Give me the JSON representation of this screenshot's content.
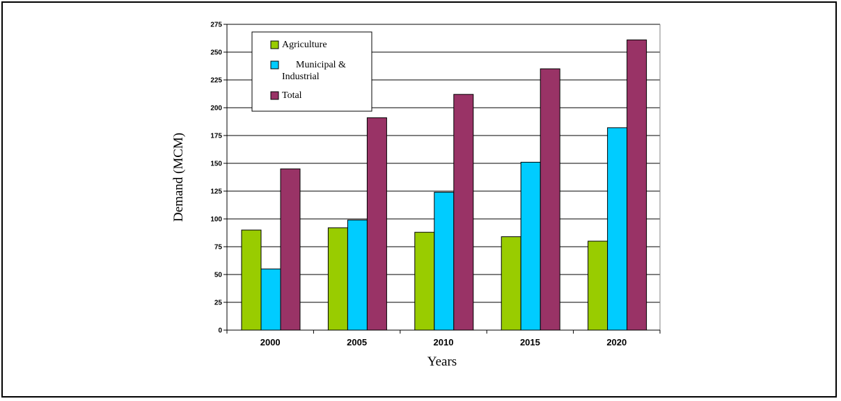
{
  "chart_data": {
    "type": "bar",
    "categories": [
      "2000",
      "2005",
      "2010",
      "2015",
      "2020"
    ],
    "series": [
      {
        "name": "Agriculture",
        "color": "#99cc00",
        "values": [
          90,
          92,
          88,
          84,
          80
        ]
      },
      {
        "name": "Municipal & Industrial",
        "color": "#00ccff",
        "values": [
          55,
          99,
          124,
          151,
          182
        ]
      },
      {
        "name": "Total",
        "color": "#993366",
        "values": [
          145,
          191,
          212,
          235,
          261
        ]
      }
    ],
    "xlabel": "Years",
    "ylabel": "Demand (MCM)",
    "ylim": [
      0,
      275
    ],
    "yticks": [
      0,
      25,
      50,
      75,
      100,
      125,
      150,
      175,
      200,
      225,
      250,
      275
    ],
    "grid": true,
    "legend": {
      "placement": "top-left",
      "entries": [
        {
          "lines": [
            "Agriculture"
          ],
          "color": "#99cc00"
        },
        {
          "lines": [
            "Municipal &",
            "Industrial"
          ],
          "color": "#00ccff"
        },
        {
          "lines": [
            "Total"
          ],
          "color": "#993366"
        }
      ]
    }
  }
}
